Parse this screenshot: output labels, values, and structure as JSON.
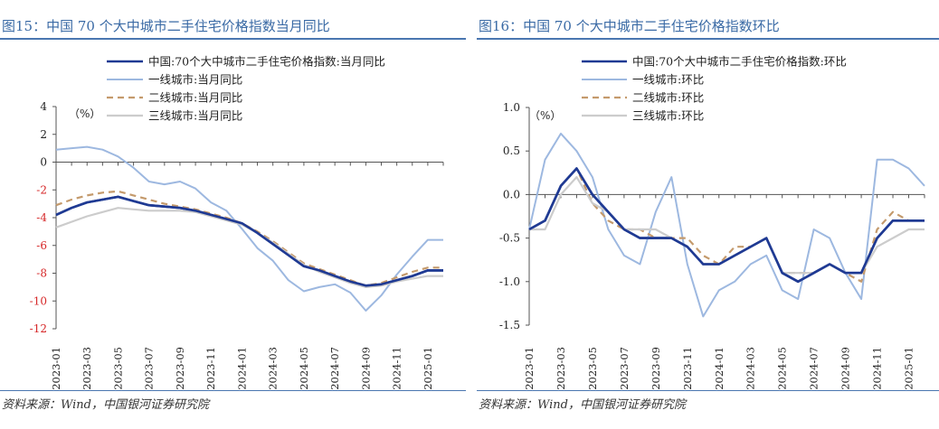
{
  "charts": [
    {
      "title": "图15：中国 70 个大中城市二手住宅价格指数当月同比",
      "source": "资料来源：Wind，中国银河证券研究院",
      "chart_data": {
        "type": "line",
        "title": "",
        "xlabel": "",
        "ylabel": "",
        "unit_label": "（%）",
        "ylim": [
          -12,
          4
        ],
        "yticks": [
          "4",
          "2",
          "0",
          "-2",
          "-4",
          "-6",
          "-8",
          "-10",
          "-12"
        ],
        "ytick_values": [
          4,
          2,
          0,
          -2,
          -4,
          -6,
          -8,
          -10,
          -12
        ],
        "negative_tick_color": "#d62728",
        "grid": false,
        "legend_position": "top",
        "x": [
          "2023-01",
          "2023-02",
          "2023-03",
          "2023-04",
          "2023-05",
          "2023-06",
          "2023-07",
          "2023-08",
          "2023-09",
          "2023-10",
          "2023-11",
          "2023-12",
          "2024-01",
          "2024-02",
          "2024-03",
          "2024-04",
          "2024-05",
          "2024-06",
          "2024-07",
          "2024-08",
          "2024-09",
          "2024-10",
          "2024-11",
          "2024-12",
          "2025-01",
          "2025-02"
        ],
        "xtick_labels": [
          "2023-01",
          "2023-03",
          "2023-05",
          "2023-07",
          "2023-09",
          "2023-11",
          "2024-01",
          "2024-03",
          "2024-05",
          "2024-07",
          "2024-09",
          "2024-11",
          "2025-01"
        ],
        "series": [
          {
            "name": "中国:70个大中城市二手住宅价格指数:当月同比",
            "color": "#1f3a93",
            "dash": "solid",
            "width": 2.6,
            "values": [
              -3.8,
              -3.3,
              -2.9,
              -2.7,
              -2.5,
              -2.8,
              -3.1,
              -3.2,
              -3.3,
              -3.5,
              -3.8,
              -4.1,
              -4.4,
              -5.1,
              -5.9,
              -6.7,
              -7.5,
              -7.8,
              -8.2,
              -8.6,
              -8.9,
              -8.8,
              -8.5,
              -8.2,
              -7.8,
              -7.8
            ]
          },
          {
            "name": "一线城市:当月同比",
            "color": "#9db8e0",
            "dash": "solid",
            "width": 2,
            "values": [
              0.9,
              1.0,
              1.1,
              0.9,
              0.4,
              -0.4,
              -1.4,
              -1.6,
              -1.4,
              -1.9,
              -2.9,
              -3.5,
              -4.8,
              -6.2,
              -7.1,
              -8.5,
              -9.3,
              -9.0,
              -8.8,
              -9.4,
              -10.7,
              -9.6,
              -8.1,
              -6.8,
              -5.6,
              -5.6
            ]
          },
          {
            "name": "二线城市:当月同比",
            "color": "#c49a6c",
            "dash": "dashed",
            "width": 2.2,
            "values": [
              -3.1,
              -2.7,
              -2.4,
              -2.2,
              -2.1,
              -2.4,
              -2.7,
              -3.0,
              -3.2,
              -3.4,
              -3.7,
              -4.0,
              -4.4,
              -5.0,
              -5.7,
              -6.5,
              -7.3,
              -7.7,
              -8.1,
              -8.5,
              -8.9,
              -8.7,
              -8.3,
              -7.9,
              -7.6,
              -7.6
            ]
          },
          {
            "name": "三线城市:当月同比",
            "color": "#cccccc",
            "dash": "solid",
            "width": 2.2,
            "values": [
              -4.7,
              -4.3,
              -3.9,
              -3.6,
              -3.3,
              -3.4,
              -3.5,
              -3.5,
              -3.5,
              -3.6,
              -3.9,
              -4.2,
              -4.5,
              -5.1,
              -5.8,
              -6.6,
              -7.4,
              -7.9,
              -8.3,
              -8.7,
              -9.0,
              -8.9,
              -8.6,
              -8.4,
              -8.2,
              -8.2
            ]
          }
        ]
      }
    },
    {
      "title": "图16：中国 70 个大中城市二手住宅价格指数环比",
      "source": "资料来源：Wind，中国银河证券研究院",
      "chart_data": {
        "type": "line",
        "title": "",
        "xlabel": "",
        "ylabel": "",
        "unit_label": "（%）",
        "ylim": [
          -1.5,
          1.0
        ],
        "yticks": [
          "1.0",
          "0.5",
          "0.0",
          "-0.5",
          "-1.0",
          "-1.5"
        ],
        "ytick_values": [
          1.0,
          0.5,
          0.0,
          -0.5,
          -1.0,
          -1.5
        ],
        "negative_tick_color": "#222222",
        "grid": false,
        "legend_position": "top",
        "x": [
          "2023-01",
          "2023-02",
          "2023-03",
          "2023-04",
          "2023-05",
          "2023-06",
          "2023-07",
          "2023-08",
          "2023-09",
          "2023-10",
          "2023-11",
          "2023-12",
          "2024-01",
          "2024-02",
          "2024-03",
          "2024-04",
          "2024-05",
          "2024-06",
          "2024-07",
          "2024-08",
          "2024-09",
          "2024-10",
          "2024-11",
          "2024-12",
          "2025-01",
          "2025-02"
        ],
        "xtick_labels": [
          "2023-01",
          "2023-03",
          "2023-05",
          "2023-07",
          "2023-09",
          "2023-11",
          "2024-01",
          "2024-03",
          "2024-05",
          "2024-07",
          "2024-09",
          "2024-11",
          "2025-01"
        ],
        "series": [
          {
            "name": "中国:70个大中城市二手住宅价格指数:环比",
            "color": "#1f3a93",
            "dash": "solid",
            "width": 2.6,
            "values": [
              -0.4,
              -0.3,
              0.1,
              0.3,
              0.0,
              -0.2,
              -0.4,
              -0.5,
              -0.5,
              -0.5,
              -0.6,
              -0.8,
              -0.8,
              -0.7,
              -0.6,
              -0.5,
              -0.9,
              -1.0,
              -0.9,
              -0.8,
              -0.9,
              -0.9,
              -0.5,
              -0.3,
              -0.3,
              -0.3
            ]
          },
          {
            "name": "一线城市:环比",
            "color": "#9db8e0",
            "dash": "solid",
            "width": 2,
            "values": [
              -0.4,
              0.4,
              0.7,
              0.5,
              0.2,
              -0.4,
              -0.7,
              -0.8,
              -0.2,
              0.2,
              -0.8,
              -1.4,
              -1.1,
              -1.0,
              -0.8,
              -0.7,
              -1.1,
              -1.2,
              -0.4,
              -0.5,
              -0.9,
              -1.2,
              0.4,
              0.4,
              0.3,
              0.1
            ]
          },
          {
            "name": "二线城市:环比",
            "color": "#c49a6c",
            "dash": "dashed",
            "width": 2.2,
            "values": [
              -0.4,
              -0.3,
              0.1,
              0.3,
              -0.1,
              -0.3,
              -0.4,
              -0.4,
              -0.5,
              -0.5,
              -0.5,
              -0.7,
              -0.8,
              -0.6,
              -0.6,
              -0.5,
              -0.9,
              -0.9,
              -0.9,
              -0.8,
              -0.9,
              -1.0,
              -0.4,
              -0.2,
              -0.3,
              -0.3
            ]
          },
          {
            "name": "三线城市:环比",
            "color": "#cccccc",
            "dash": "solid",
            "width": 2.2,
            "values": [
              -0.4,
              -0.4,
              0.0,
              0.2,
              -0.1,
              -0.2,
              -0.4,
              -0.4,
              -0.4,
              -0.5,
              -0.6,
              -0.8,
              -0.8,
              -0.7,
              -0.6,
              -0.5,
              -0.9,
              -0.9,
              -0.9,
              -0.8,
              -0.9,
              -0.9,
              -0.6,
              -0.5,
              -0.4,
              -0.4
            ]
          }
        ]
      }
    }
  ]
}
